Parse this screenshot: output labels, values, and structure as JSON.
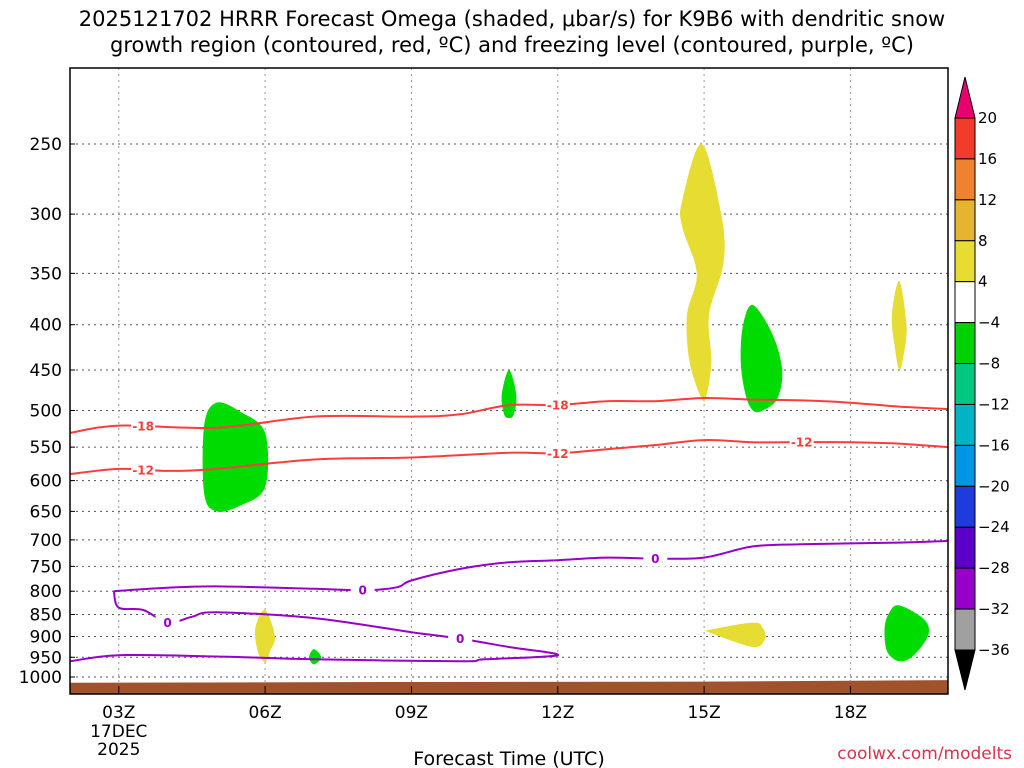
{
  "title_line1": "2025121702 HRRR Forecast Omega (shaded, μbar/s) for K9B6 with dendritic snow",
  "title_line2": "growth region (contoured, red, ºC) and freezing level (contoured, purple, ºC)",
  "credit": "coolwx.com/modelts",
  "chart_data": {
    "type": "heatmap",
    "xlabel": "Forecast Time (UTC)",
    "x_ticks": [
      "03Z",
      "06Z",
      "09Z",
      "12Z",
      "15Z",
      "18Z"
    ],
    "x_ticks_hours": [
      3,
      6,
      9,
      12,
      15,
      18
    ],
    "x_date_label": [
      "17DEC",
      "2025"
    ],
    "xlim_hours": [
      2,
      20
    ],
    "y_ticks": [
      250,
      300,
      350,
      400,
      450,
      500,
      550,
      600,
      650,
      700,
      750,
      800,
      850,
      900,
      950,
      1000
    ],
    "ylim_hPa": [
      200,
      1030
    ],
    "y_reversed": true,
    "grid": true,
    "colorbar": {
      "labels": [
        "20",
        "16",
        "12",
        "8",
        "4",
        "−4",
        "−8",
        "−12",
        "−16",
        "−20",
        "−24",
        "−28",
        "−32",
        "−36"
      ],
      "colors": [
        "#e8006e",
        "#f03c28",
        "#f0822d",
        "#e6b42d",
        "#e6dc32",
        "#ffffff",
        "#00d200",
        "#00c882",
        "#00b4c8",
        "#0096e6",
        "#1e3cdc",
        "#5a00c8",
        "#9600c8",
        "#a0a0a0",
        "#000000"
      ]
    },
    "omega_regions": [
      {
        "value_range": "-8 to -4",
        "color": "#00dc00",
        "outline": [
          [
            5.0,
            490
          ],
          [
            5.5,
            502
          ],
          [
            6.0,
            530
          ],
          [
            6.0,
            610
          ],
          [
            5.5,
            640
          ],
          [
            5.0,
            650
          ],
          [
            4.75,
            620
          ],
          [
            4.75,
            520
          ]
        ]
      },
      {
        "value_range": "-8 to -4",
        "color": "#00dc00",
        "outline": [
          [
            11.0,
            450
          ],
          [
            11.15,
            480
          ],
          [
            11.1,
            505
          ],
          [
            11.0,
            510
          ],
          [
            10.9,
            505
          ],
          [
            10.85,
            480
          ]
        ]
      },
      {
        "value_range": "-8 to -4",
        "color": "#00dc00",
        "outline": [
          [
            16.0,
            380
          ],
          [
            16.4,
            410
          ],
          [
            16.6,
            450
          ],
          [
            16.5,
            485
          ],
          [
            16.2,
            500
          ],
          [
            16.0,
            500
          ],
          [
            15.85,
            480
          ],
          [
            15.75,
            440
          ],
          [
            15.8,
            400
          ]
        ]
      },
      {
        "value_range": "-8 to -4",
        "color": "#00dc00",
        "outline": [
          [
            19.0,
            830
          ],
          [
            19.5,
            860
          ],
          [
            19.6,
            895
          ],
          [
            19.3,
            945
          ],
          [
            19.0,
            960
          ],
          [
            18.75,
            935
          ],
          [
            18.7,
            880
          ],
          [
            18.8,
            845
          ]
        ]
      },
      {
        "value_range": "-8 to -4",
        "color": "#00dc00",
        "outline": [
          [
            7.0,
            930
          ],
          [
            7.15,
            950
          ],
          [
            7.0,
            968
          ],
          [
            6.9,
            950
          ]
        ]
      },
      {
        "value_range": "4 to 8",
        "color": "#e6dc32",
        "outline": [
          [
            14.95,
            250
          ],
          [
            15.35,
            300
          ],
          [
            15.4,
            340
          ],
          [
            15.1,
            390
          ],
          [
            15.15,
            440
          ],
          [
            15.05,
            480
          ],
          [
            14.95,
            485
          ],
          [
            14.7,
            440
          ],
          [
            14.65,
            390
          ],
          [
            14.85,
            350
          ],
          [
            14.55,
            310
          ],
          [
            14.55,
            290
          ]
        ]
      },
      {
        "value_range": "4 to 8",
        "color": "#e6dc32",
        "outline": [
          [
            19.0,
            357
          ],
          [
            19.15,
            400
          ],
          [
            19.1,
            430
          ],
          [
            19.0,
            450
          ],
          [
            18.9,
            420
          ],
          [
            18.85,
            390
          ]
        ]
      },
      {
        "value_range": "4 to 8",
        "color": "#e6dc32",
        "outline": [
          [
            6.0,
            840
          ],
          [
            6.2,
            900
          ],
          [
            6.1,
            935
          ],
          [
            6.0,
            962
          ],
          [
            5.85,
            935
          ],
          [
            5.8,
            880
          ]
        ]
      },
      {
        "value_range": "4 to 8",
        "color": "#e6dc32",
        "outline": [
          [
            15.1,
            885
          ],
          [
            16.0,
            868
          ],
          [
            16.2,
            880
          ],
          [
            16.25,
            905
          ],
          [
            16.0,
            925
          ],
          [
            15.1,
            890
          ]
        ]
      }
    ],
    "temperature_contours": [
      {
        "label": "-18",
        "color": "#ff3c3c",
        "label_at_hours": [
          3.5,
          12.0
        ],
        "points": [
          [
            2,
            530
          ],
          [
            3,
            520
          ],
          [
            5,
            523
          ],
          [
            7,
            508
          ],
          [
            9,
            508
          ],
          [
            10,
            505
          ],
          [
            11,
            493
          ],
          [
            12,
            493
          ],
          [
            13,
            488
          ],
          [
            14,
            488
          ],
          [
            15,
            484
          ],
          [
            16,
            486
          ],
          [
            17,
            487
          ],
          [
            18,
            490
          ],
          [
            19,
            495
          ],
          [
            20,
            498
          ]
        ]
      },
      {
        "label": "-12",
        "color": "#ff3c3c",
        "label_at_hours": [
          3.5,
          12.0,
          17.0
        ],
        "points": [
          [
            2,
            590
          ],
          [
            3,
            582
          ],
          [
            4,
            585
          ],
          [
            5,
            582
          ],
          [
            7,
            568
          ],
          [
            9,
            565
          ],
          [
            11,
            558
          ],
          [
            12,
            559
          ],
          [
            13,
            553
          ],
          [
            14,
            547
          ],
          [
            15,
            540
          ],
          [
            16,
            543
          ],
          [
            17,
            543
          ],
          [
            18,
            543
          ],
          [
            19,
            545
          ],
          [
            20,
            550
          ]
        ]
      },
      {
        "label": "0",
        "color": "#9600c8",
        "label_at_hours": [
          8.0,
          14.0
        ],
        "points": [
          [
            2.9,
            800
          ],
          [
            4,
            793
          ],
          [
            5,
            790
          ],
          [
            7,
            795
          ],
          [
            8,
            798
          ],
          [
            8.7,
            792
          ],
          [
            9,
            778
          ],
          [
            10,
            755
          ],
          [
            11,
            742
          ],
          [
            12,
            738
          ],
          [
            13,
            733
          ],
          [
            14,
            735
          ],
          [
            15,
            733
          ],
          [
            16,
            712
          ],
          [
            17,
            708
          ],
          [
            19,
            705
          ],
          [
            20,
            702
          ]
        ]
      },
      {
        "label": "0",
        "color": "#9600c8",
        "label_at_hours": [
          4.0,
          10.0
        ],
        "points": [
          [
            2.9,
            800
          ],
          [
            3,
            835
          ],
          [
            3.5,
            840
          ],
          [
            4,
            868
          ],
          [
            4.5,
            855
          ],
          [
            5,
            845
          ],
          [
            7,
            858
          ],
          [
            9,
            890
          ],
          [
            10,
            905
          ],
          [
            11,
            925
          ],
          [
            12,
            945
          ],
          [
            10.5,
            955
          ],
          [
            10,
            960
          ],
          [
            7,
            955
          ],
          [
            5,
            948
          ],
          [
            3,
            945
          ],
          [
            2,
            960
          ]
        ]
      }
    ],
    "terrain": {
      "color": "#a0522d",
      "surface_hPa": [
        [
          2,
          1015
        ],
        [
          9,
          1013
        ],
        [
          15,
          1012
        ],
        [
          20,
          1008
        ]
      ]
    }
  }
}
